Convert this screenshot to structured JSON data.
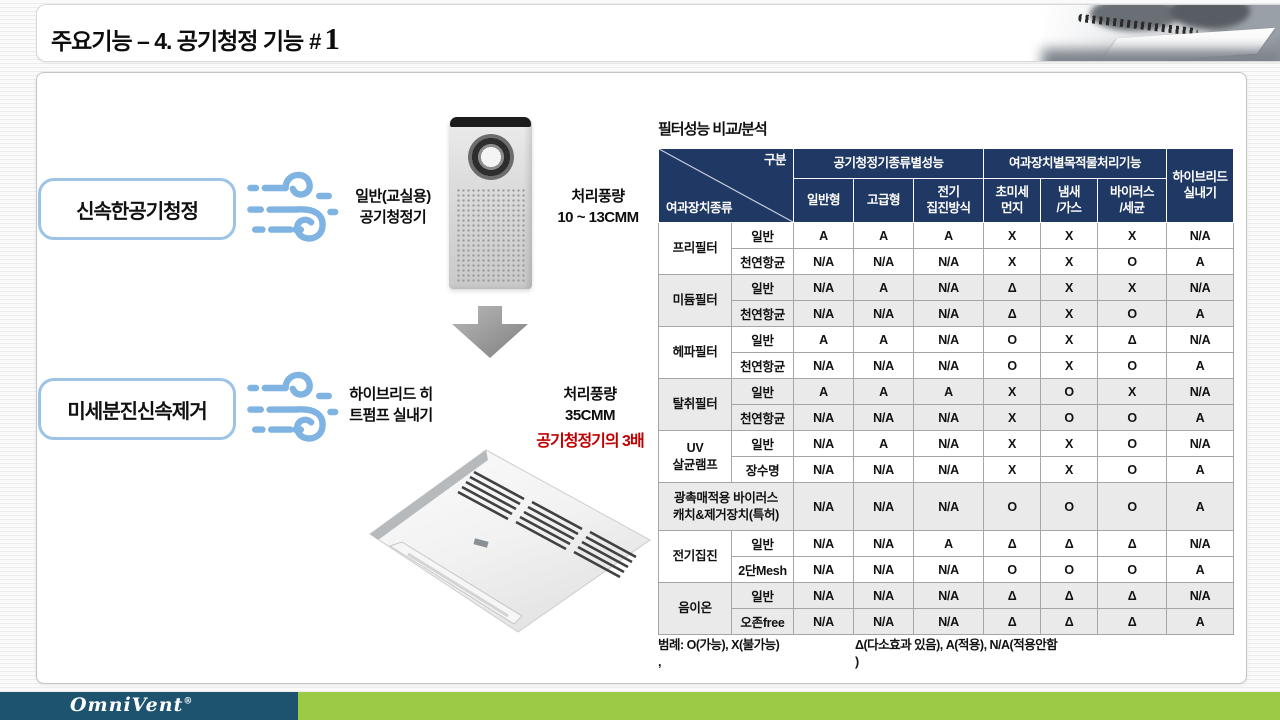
{
  "header": {
    "title": "주요기능 – 4. 공기청정 기능",
    "hash": "#",
    "number": "1"
  },
  "features": [
    {
      "label": "신속한공기청정",
      "device": "일반(교실용)\n공기청정기",
      "airflow": "처리풍량\n10 ~ 13CMM"
    },
    {
      "label": "미세분진신속제거",
      "device": "하이브리드 히\n트펌프 실내기",
      "airflow": "처리풍량\n35CMM",
      "highlight": "공기청정기의 3배"
    }
  ],
  "table": {
    "title": "필터성능 비교/분석",
    "corner": {
      "top": "구분",
      "bottom": "여과장치종류"
    },
    "group1": {
      "label": "공기청정기종류별성능",
      "cols": [
        "일반형",
        "고급형",
        "전기\n집진방식"
      ]
    },
    "group2": {
      "label": "여과장치별목적물처리기능",
      "cols": [
        "초미세\n먼지",
        "냄새\n/가스",
        "바이러스\n/세균"
      ]
    },
    "hybrid_col": "하이브리드\n실내기",
    "rows": [
      {
        "filter": "프리필터",
        "variants": [
          {
            "name": "일반",
            "values": [
              "A",
              "A",
              "A",
              "X",
              "X",
              "X",
              "N/A"
            ]
          },
          {
            "name": "천연항균",
            "values": [
              "N/A",
              "N/A",
              "N/A",
              "X",
              "X",
              "O",
              "A"
            ]
          }
        ]
      },
      {
        "filter": "미듐필터",
        "variants": [
          {
            "name": "일반",
            "values": [
              "N/A",
              "A",
              "N/A",
              "Δ",
              "X",
              "X",
              "N/A"
            ]
          },
          {
            "name": "천연항균",
            "values": [
              "N/A",
              "N/A",
              "N/A",
              "Δ",
              "X",
              "O",
              "A"
            ]
          }
        ]
      },
      {
        "filter": "헤파필터",
        "variants": [
          {
            "name": "일반",
            "values": [
              "A",
              "A",
              "N/A",
              "O",
              "X",
              "Δ",
              "N/A"
            ]
          },
          {
            "name": "천연항균",
            "values": [
              "N/A",
              "N/A",
              "N/A",
              "O",
              "X",
              "O",
              "A"
            ]
          }
        ]
      },
      {
        "filter": "탈취필터",
        "variants": [
          {
            "name": "일반",
            "values": [
              "A",
              "A",
              "A",
              "X",
              "O",
              "X",
              "N/A"
            ]
          },
          {
            "name": "천연항균",
            "values": [
              "N/A",
              "N/A",
              "N/A",
              "X",
              "O",
              "O",
              "A"
            ]
          }
        ]
      },
      {
        "filter": "UV\n살균램프",
        "variants": [
          {
            "name": "일반",
            "values": [
              "N/A",
              "A",
              "N/A",
              "X",
              "X",
              "O",
              "N/A"
            ]
          },
          {
            "name": "장수명",
            "values": [
              "N/A",
              "N/A",
              "N/A",
              "X",
              "X",
              "O",
              "A"
            ]
          }
        ]
      },
      {
        "filter": "광촉매적용 바이러스\n캐치&제거장치(특허)",
        "values": [
          "N/A",
          "N/A",
          "N/A",
          "O",
          "O",
          "O",
          "A"
        ]
      },
      {
        "filter": "전기집진",
        "variants": [
          {
            "name": "일반",
            "values": [
              "N/A",
              "N/A",
              "A",
              "Δ",
              "Δ",
              "Δ",
              "N/A"
            ]
          },
          {
            "name": "2단Mesh",
            "values": [
              "N/A",
              "N/A",
              "N/A",
              "O",
              "O",
              "O",
              "A"
            ]
          }
        ]
      },
      {
        "filter": "음이온",
        "variants": [
          {
            "name": "일반",
            "values": [
              "N/A",
              "N/A",
              "N/A",
              "Δ",
              "Δ",
              "Δ",
              "N/A"
            ]
          },
          {
            "name": "오존free",
            "values": [
              "N/A",
              "N/A",
              "N/A",
              "Δ",
              "Δ",
              "Δ",
              "A"
            ]
          }
        ]
      }
    ],
    "legend_left": "범례: O(가능),  X(불가능)\n,",
    "legend_right": "Δ(다소효과 있음),  A(적용),  N/A(적용안함\n)"
  },
  "footer": {
    "logo": "OmniVent",
    "reg": "®"
  },
  "colors": {
    "table_header": "#1F3864",
    "row_shade": "#eaeaea",
    "accent_blue_border": "#9DC3E6",
    "wind_icon_blue": "#7FB3E2",
    "highlight_red": "#C00000",
    "footer_teal": "#1D536E",
    "footer_green": "#9CCA45"
  }
}
